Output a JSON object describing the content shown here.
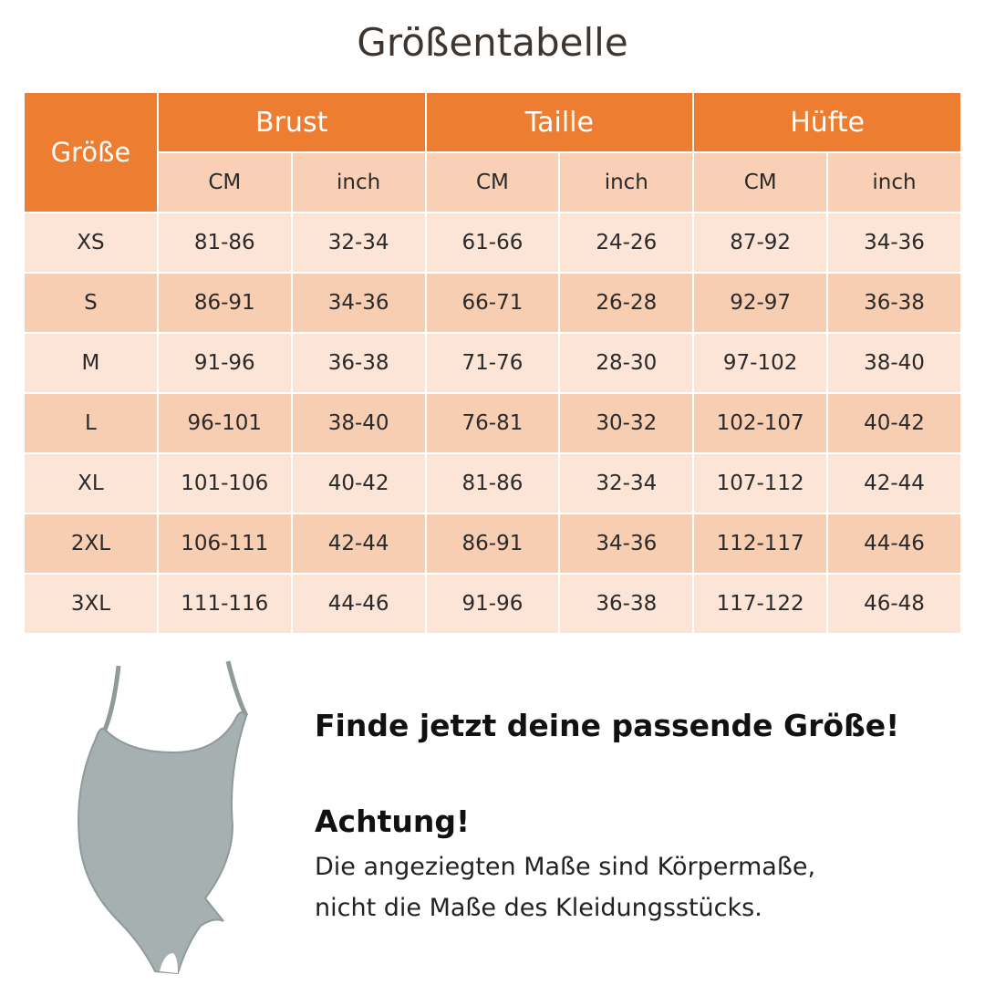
{
  "title": "Größentabelle",
  "table": {
    "corner": "Größe",
    "groups": [
      "Brust",
      "Taille",
      "Hüfte"
    ],
    "subheaders": [
      "CM",
      "inch",
      "CM",
      "inch",
      "CM",
      "inch"
    ],
    "rows": [
      [
        "XS",
        "81-86",
        "32-34",
        "61-66",
        "24-26",
        "87-92",
        "34-36"
      ],
      [
        "S",
        "86-91",
        "34-36",
        "66-71",
        "26-28",
        "92-97",
        "36-38"
      ],
      [
        "M",
        "91-96",
        "36-38",
        "71-76",
        "28-30",
        "97-102",
        "38-40"
      ],
      [
        "L",
        "96-101",
        "38-40",
        "76-81",
        "30-32",
        "102-107",
        "40-42"
      ],
      [
        "XL",
        "101-106",
        "40-42",
        "81-86",
        "32-34",
        "107-112",
        "42-44"
      ],
      [
        "2XL",
        "106-111",
        "42-44",
        "86-91",
        "34-36",
        "112-117",
        "44-46"
      ],
      [
        "3XL",
        "111-116",
        "44-46",
        "91-96",
        "36-38",
        "117-122",
        "46-48"
      ]
    ]
  },
  "note": {
    "headline": "Finde jetzt deine passende Größe!",
    "warning_title": "Achtung!",
    "warning_lines": [
      "Die angeziegten Maße sind Körpermaße,",
      "nicht die Maße des Kleidungsstücks."
    ]
  }
}
